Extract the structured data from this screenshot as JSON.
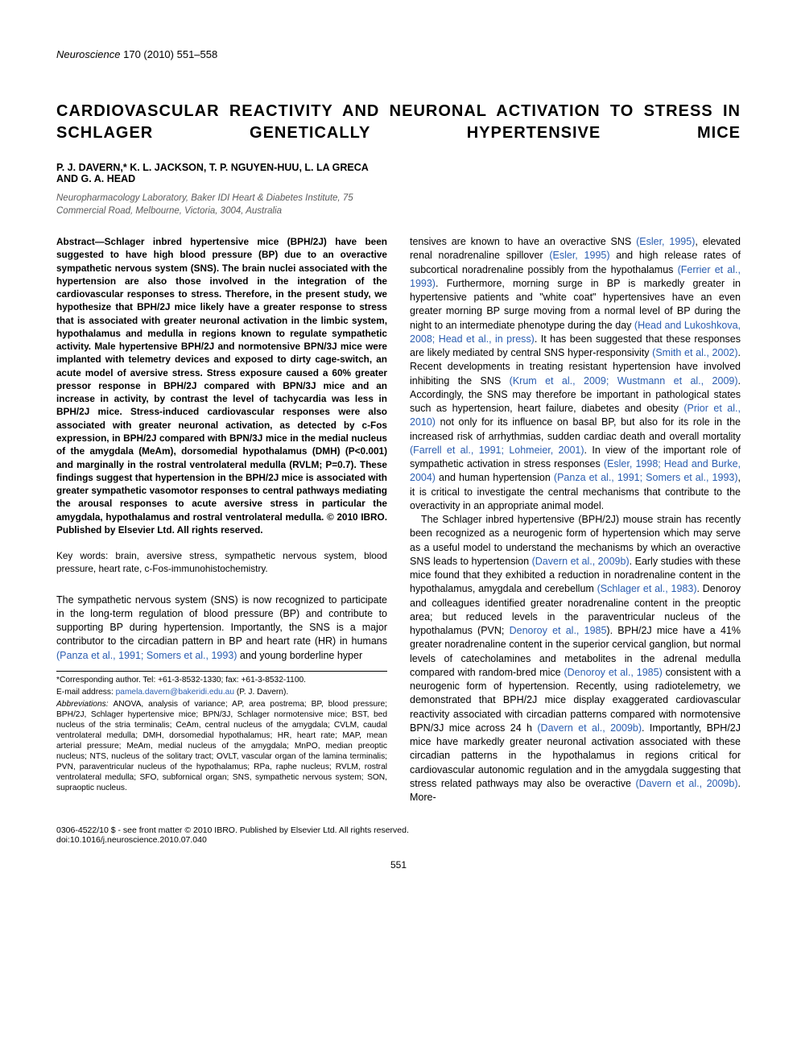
{
  "journal": {
    "name": "Neuroscience",
    "citation": " 170 (2010) 551–558"
  },
  "title": "CARDIOVASCULAR REACTIVITY AND NEURONAL ACTIVATION TO STRESS IN SCHLAGER GENETICALLY HYPERTENSIVE MICE",
  "authors": "P. J. DAVERN,* K. L. JACKSON, T. P. NGUYEN-HUU, L. LA GRECA AND G. A. HEAD",
  "affiliation": "Neuropharmacology Laboratory, Baker IDI Heart & Diabetes Institute, 75 Commercial Road, Melbourne, Victoria, 3004, Australia",
  "abstract": "Abstract—Schlager inbred hypertensive mice (BPH/2J) have been suggested to have high blood pressure (BP) due to an overactive sympathetic nervous system (SNS). The brain nuclei associated with the hypertension are also those involved in the integration of the cardiovascular responses to stress. Therefore, in the present study, we hypothesize that BPH/2J mice likely have a greater response to stress that is associated with greater neuronal activation in the limbic system, hypothalamus and medulla in regions known to regulate sympathetic activity. Male hypertensive BPH/2J and normotensive BPN/3J mice were implanted with telemetry devices and exposed to dirty cage-switch, an acute model of aversive stress. Stress exposure caused a 60% greater pressor response in BPH/2J compared with BPN/3J mice and an increase in activity, by contrast the level of tachycardia was less in BPH/2J mice. Stress-induced cardiovascular responses were also associated with greater neuronal activation, as detected by c-Fos expression, in BPH/2J compared with BPN/3J mice in the medial nucleus of the amygdala (MeAm), dorsomedial hypothalamus (DMH) (P<0.001) and marginally in the rostral ventrolateral medulla (RVLM; P=0.7). These findings suggest that hypertension in the BPH/2J mice is associated with greater sympathetic vasomotor responses to central pathways mediating the arousal responses to acute aversive stress in particular the amygdala, hypothalamus and rostral ventrolateral medulla. © 2010 IBRO. Published by Elsevier Ltd. All rights reserved.",
  "keywords_label": "Key words: ",
  "keywords": "brain, aversive stress, sympathetic nervous system, blood pressure, heart rate, c-Fos-immunohistochemistry.",
  "body": {
    "p1a": "The sympathetic nervous system (SNS) is now recognized to participate in the long-term regulation of blood pressure (BP) and contribute to supporting BP during hypertension. Importantly, the SNS is a major contributor to the circadian pattern in BP and heart rate (HR) in humans ",
    "c1": "(Panza et al., 1991; Somers et al., 1993)",
    "p1b": " and young borderline hyper",
    "p2a": "tensives are known to have an overactive SNS ",
    "c2": "(Esler, 1995)",
    "p2b": ", elevated renal noradrenaline spillover ",
    "c3": "(Esler, 1995)",
    "p2c": " and high release rates of subcortical noradrenaline possibly from the hypothalamus ",
    "c4": "(Ferrier et al., 1993)",
    "p2d": ". Furthermore, morning surge in BP is markedly greater in hypertensive patients and \"white coat\" hypertensives have an even greater morning BP surge moving from a normal level of BP during the night to an intermediate phenotype during the day ",
    "c5": "(Head and Lukoshkova, 2008; Head et al., in press)",
    "p2e": ". It has been suggested that these responses are likely mediated by central SNS hyper-responsivity ",
    "c6": "(Smith et al., 2002)",
    "p2f": ". Recent developments in treating resistant hypertension have involved inhibiting the SNS ",
    "c7": "(Krum et al., 2009; Wustmann et al., 2009)",
    "p2g": ". Accordingly, the SNS may therefore be important in pathological states such as hypertension, heart failure, diabetes and obesity ",
    "c8": "(Prior et al., 2010)",
    "p2h": " not only for its influence on basal BP, but also for its role in the increased risk of arrhythmias, sudden cardiac death and overall mortality ",
    "c9": "(Farrell et al., 1991; Lohmeier, 2001)",
    "p2i": ". In view of the important role of sympathetic activation in stress responses ",
    "c10": "(Esler, 1998; Head and Burke, 2004)",
    "p2j": " and human hypertension ",
    "c11": "(Panza et al., 1991; Somers et al., 1993)",
    "p2k": ", it is critical to investigate the central mechanisms that contribute to the overactivity in an appropriate animal model.",
    "p3a": "The Schlager inbred hypertensive (BPH/2J) mouse strain has recently been recognized as a neurogenic form of hypertension which may serve as a useful model to understand the mechanisms by which an overactive SNS leads to hypertension ",
    "c12": "(Davern et al., 2009b)",
    "p3b": ". Early studies with these mice found that they exhibited a reduction in noradrenaline content in the hypothalamus, amygdala and cerebellum ",
    "c13": "(Schlager et al., 1983)",
    "p3c": ". Denoroy and colleagues identified greater noradrenaline content in the preoptic area; but reduced levels in the paraventricular nucleus of the hypothalamus (PVN; ",
    "c14": "Denoroy et al., 1985",
    "p3d": "). BPH/2J mice have a 41% greater noradrenaline content in the superior cervical ganglion, but normal levels of catecholamines and metabolites in the adrenal medulla compared with random-bred mice ",
    "c15": "(Denoroy et al., 1985)",
    "p3e": " consistent with a neurogenic form of hypertension. Recently, using radiotelemetry, we demonstrated that BPH/2J mice display exaggerated cardiovascular reactivity associated with circadian patterns compared with normotensive BPN/3J mice across 24 h ",
    "c16": "(Davern et al., 2009b)",
    "p3f": ". Importantly, BPH/2J mice have markedly greater neuronal activation associated with these circadian patterns in the hypothalamus in regions critical for cardiovascular autonomic regulation and in the amygdala suggesting that stress related pathways may also be overactive ",
    "c17": "(Davern et al., 2009b)",
    "p3g": ". More-"
  },
  "footnotes": {
    "corresponding": "*Corresponding author. Tel: +61-3-8532-1330; fax: +61-3-8532-1100.",
    "email_label": "E-mail address: ",
    "email": "pamela.davern@bakeridi.edu.au",
    "email_after": " (P. J. Davern).",
    "abbrev_label": "Abbreviations: ",
    "abbrev": "ANOVA, analysis of variance; AP, area postrema; BP, blood pressure; BPH/2J, Schlager hypertensive mice; BPN/3J, Schlager normotensive mice; BST, bed nucleus of the stria terminalis; CeAm, central nucleus of the amygdala; CVLM, caudal ventrolateral medulla; DMH, dorsomedial hypothalamus; HR, heart rate; MAP, mean arterial pressure; MeAm, medial nucleus of the amygdala; MnPO, median preoptic nucleus; NTS, nucleus of the solitary tract; OVLT, vascular organ of the lamina terminalis; PVN, paraventricular nucleus of the hypothalamus; RPa, raphe nucleus; RVLM, rostral ventrolateral medulla; SFO, subfornical organ; SNS, sympathetic nervous system; SON, supraoptic nucleus."
  },
  "copyright": "0306-4522/10 $ - see front matter © 2010 IBRO. Published by Elsevier Ltd. All rights reserved.",
  "doi": "doi:10.1016/j.neuroscience.2010.07.040",
  "pagenum": "551",
  "colors": {
    "cite": "#2a5db0",
    "affil": "#5a5a5a"
  }
}
